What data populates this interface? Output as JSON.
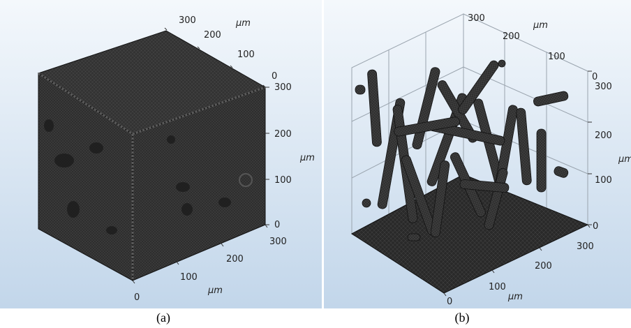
{
  "captions": {
    "a": "(a)",
    "b": "(b)"
  },
  "panel_a": {
    "top_axis": {
      "ticks": [
        "300",
        "200",
        "100",
        "0"
      ],
      "unit": "μm"
    },
    "right_axis": {
      "ticks": [
        "300",
        "200",
        "100",
        "0"
      ],
      "unit": "μm"
    },
    "bottom_axis": {
      "ticks": [
        "300",
        "200",
        "100",
        "0"
      ],
      "unit": "μm"
    }
  },
  "panel_b": {
    "top_axis": {
      "ticks": [
        "300",
        "200",
        "100",
        "0"
      ],
      "unit": "μm"
    },
    "right_axis": {
      "ticks": [
        "300",
        "200",
        "100",
        "0"
      ],
      "unit": "μm"
    },
    "bottom_axis": {
      "ticks": [
        "300",
        "200",
        "100",
        "0"
      ],
      "unit": "μm"
    }
  },
  "colors": {
    "background_top": "#f4f8fc",
    "background_bottom": "#c2d6ea",
    "mesh": "#2b2b2b",
    "mesh_light": "#3c3c3c"
  }
}
